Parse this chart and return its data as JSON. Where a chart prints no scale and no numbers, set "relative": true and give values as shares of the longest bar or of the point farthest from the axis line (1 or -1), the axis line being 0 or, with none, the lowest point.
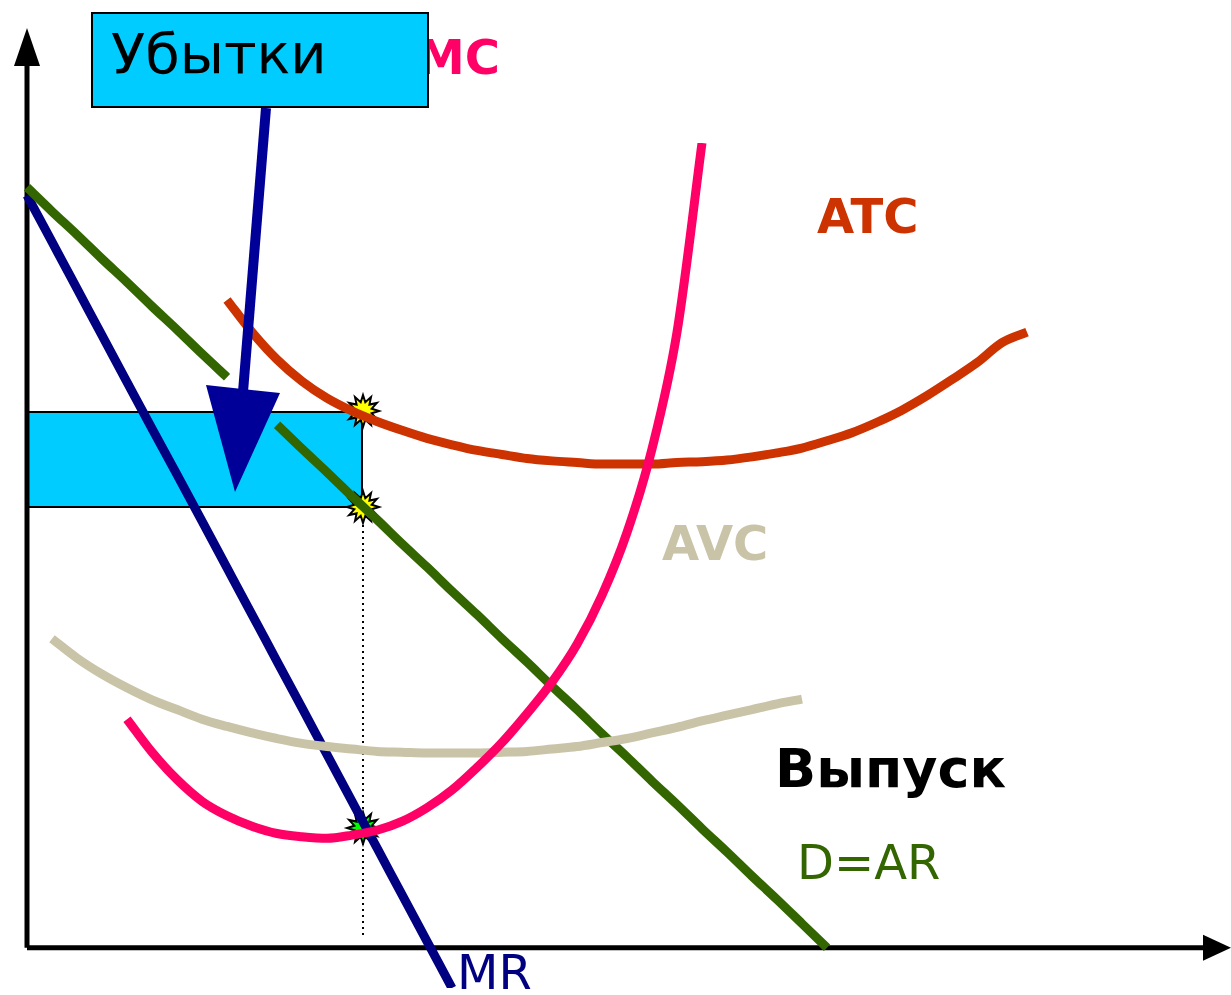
{
  "chart_data": {
    "type": "line",
    "relative": true,
    "xlabel": "Выпуск",
    "annotations": [
      "Убытки"
    ],
    "grid": false,
    "legend": false,
    "marker": "none",
    "categories": [
      null,
      null,
      null,
      null,
      null,
      null,
      null,
      null,
      null,
      null,
      null,
      null,
      null,
      null,
      null,
      null,
      null,
      null,
      null,
      null,
      null,
      null,
      null,
      null,
      null,
      null,
      null,
      null,
      null,
      null,
      null,
      null,
      null,
      null,
      null,
      null,
      null,
      null,
      null,
      null,
      null,
      null,
      null,
      null,
      null,
      null,
      null,
      null,
      null
    ],
    "series": [
      {
        "name": "MC",
        "color": "#ff0066",
        "values": [
          null,
          null,
          null,
          null,
          0.284,
          0.243,
          0.209,
          0.182,
          0.164,
          0.151,
          0.142,
          0.138,
          0.136,
          0.14,
          0.146,
          0.157,
          0.174,
          0.196,
          0.224,
          0.255,
          0.291,
          0.33,
          0.377,
          0.438,
          0.516,
          0.62,
          0.765,
          1.0,
          null,
          null,
          null,
          null,
          null,
          null,
          null,
          null,
          null,
          null,
          null,
          null,
          null,
          null,
          null,
          null,
          null,
          null,
          null,
          null,
          null
        ]
      },
      {
        "name": "ATC",
        "color": "#cc3300",
        "values": [
          null,
          null,
          null,
          null,
          null,
          null,
          null,
          null,
          0.805,
          0.765,
          0.731,
          0.704,
          0.683,
          0.667,
          0.654,
          0.643,
          0.633,
          0.625,
          0.618,
          0.613,
          0.608,
          0.605,
          0.603,
          0.601,
          0.601,
          0.601,
          0.603,
          0.604,
          0.606,
          0.61,
          0.615,
          0.621,
          0.63,
          0.64,
          0.653,
          0.668,
          0.686,
          0.706,
          0.727,
          0.752,
          0.765,
          null,
          null,
          null,
          null,
          null,
          null,
          null,
          null
        ]
      },
      {
        "name": "AVC",
        "color": "#c9c4a8",
        "values": [
          null,
          0.384,
          0.36,
          0.34,
          0.323,
          0.308,
          0.296,
          0.284,
          0.275,
          0.267,
          0.26,
          0.254,
          0.25,
          0.247,
          0.244,
          0.243,
          0.242,
          0.242,
          0.242,
          0.243,
          0.244,
          0.247,
          0.25,
          0.255,
          0.26,
          0.267,
          0.274,
          0.282,
          0.289,
          0.296,
          0.303,
          0.309,
          null,
          null,
          null,
          null,
          null,
          null,
          null,
          null,
          null,
          null,
          null,
          null,
          null,
          null,
          null,
          null,
          null
        ]
      },
      {
        "name": "D=AR",
        "color": "#336600",
        "values": [
          0.945,
          0.915,
          0.886,
          0.856,
          0.827,
          0.797,
          0.768,
          0.738,
          0.709,
          null,
          0.65,
          0.62,
          0.591,
          0.561,
          0.532,
          0.502,
          0.473,
          0.443,
          0.414,
          0.384,
          0.355,
          0.325,
          0.296,
          0.266,
          0.237,
          0.207,
          0.178,
          0.148,
          0.119,
          0.089,
          0.06,
          0.03,
          0,
          null,
          null,
          null,
          null,
          null,
          null,
          null,
          null,
          null,
          null,
          null,
          null,
          null,
          null,
          null,
          null
        ]
      },
      {
        "name": "MR",
        "color": "#000080",
        "values": [
          0.935,
          0.877,
          0.819,
          0.761,
          0.703,
          0.645,
          0.588,
          0.53,
          0.472,
          0.414,
          0.356,
          0.298,
          0.24,
          0.182,
          0.124,
          0.066,
          0.008,
          -0.05,
          null,
          null,
          null,
          null,
          null,
          null,
          null,
          null,
          null,
          null,
          null,
          null,
          null,
          null,
          null,
          null,
          null,
          null,
          null,
          null,
          null,
          null,
          null,
          null,
          null,
          null,
          null,
          null,
          null,
          null,
          null
        ]
      }
    ]
  }
}
